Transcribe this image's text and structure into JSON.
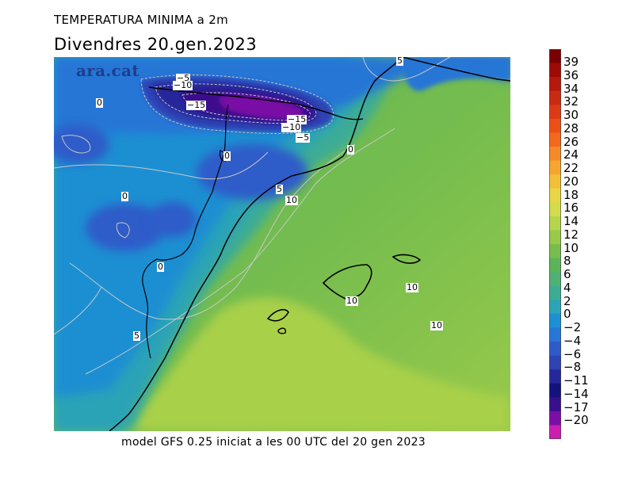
{
  "header": {
    "title": "TEMPERATURA MINIMA a 2m",
    "date": "Divendres  20.gen.2023"
  },
  "logo": {
    "text": "ara.cat"
  },
  "footer": {
    "text": "model GFS 0.25 iniciat a les 00 UTC del 20 gen 2023"
  },
  "legend": {
    "labels": [
      "39",
      "36",
      "34",
      "32",
      "30",
      "28",
      "26",
      "24",
      "22",
      "20",
      "18",
      "16",
      "14",
      "12",
      "10",
      "8",
      "6",
      "4",
      "2",
      "0",
      "−2",
      "−4",
      "−6",
      "−8",
      "−11",
      "−14",
      "−17",
      "−20"
    ],
    "colors": [
      "#7a0000",
      "#9c0b06",
      "#b5180c",
      "#c92a12",
      "#dc3b16",
      "#eb5018",
      "#f2691f",
      "#f58a2a",
      "#f5a630",
      "#f2c038",
      "#e9d548",
      "#d3dc4c",
      "#b6d44c",
      "#98c94a",
      "#76bd4e",
      "#5cb35a",
      "#4fb173",
      "#3eac95",
      "#2ca3b7",
      "#1d8fd2",
      "#2876d6",
      "#2f5bc9",
      "#2f43b3",
      "#26279a",
      "#13137a",
      "#3a0f8c",
      "#7a0fa5",
      "#cc1fb1"
    ]
  },
  "contour_labels": [
    {
      "text": "5",
      "name": "contour-label-5-north"
    },
    {
      "text": "−5",
      "name": "contour-label-m5-a"
    },
    {
      "text": "−10",
      "name": "contour-label-m10-a"
    },
    {
      "text": "−15",
      "name": "contour-label-m15-a"
    },
    {
      "text": "0",
      "name": "contour-label-0-west"
    },
    {
      "text": "−15",
      "name": "contour-label-m15-b"
    },
    {
      "text": "−10",
      "name": "contour-label-m10-b"
    },
    {
      "text": "−5",
      "name": "contour-label-m5-b"
    },
    {
      "text": "0",
      "name": "contour-label-0-coast"
    },
    {
      "text": "0",
      "name": "contour-label-0-central"
    },
    {
      "text": "5",
      "name": "contour-label-5-central"
    },
    {
      "text": "10",
      "name": "contour-label-10-central"
    },
    {
      "text": "0",
      "name": "contour-label-0-mid"
    },
    {
      "text": "0",
      "name": "contour-label-0-south"
    },
    {
      "text": "10",
      "name": "contour-label-10-east"
    },
    {
      "text": "10",
      "name": "contour-label-10-island"
    },
    {
      "text": "10",
      "name": "contour-label-10-sea"
    },
    {
      "text": "5",
      "name": "contour-label-5-south"
    }
  ]
}
